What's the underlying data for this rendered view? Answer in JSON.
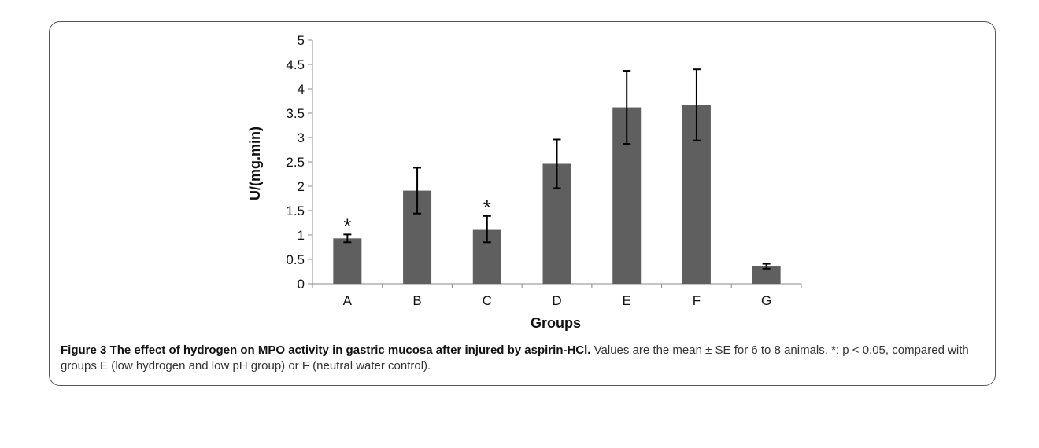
{
  "chart_data": {
    "type": "bar",
    "xlabel": "Groups",
    "ylabel": "U/(mg.min)",
    "ylim": [
      0,
      5
    ],
    "yticks": [
      "0",
      "0.5",
      "1",
      "1.5",
      "2",
      "2.5",
      "3",
      "3.5",
      "4",
      "4.5",
      "5"
    ],
    "categories": [
      "A",
      "B",
      "C",
      "D",
      "E",
      "F",
      "G"
    ],
    "values": [
      0.93,
      1.91,
      1.12,
      2.46,
      3.62,
      3.67,
      0.36
    ],
    "errors": [
      0.08,
      0.47,
      0.27,
      0.5,
      0.75,
      0.73,
      0.05
    ],
    "annotations": [
      "*",
      "",
      "*",
      "",
      "",
      "",
      ""
    ],
    "bar_color": "#5f5f5f",
    "grid": false,
    "legend": "none"
  },
  "caption": {
    "label": "Figure 3",
    "title": "The effect of hydrogen on MPO activity in gastric mucosa after injured by aspirin-HCl.",
    "text": " Values are the mean ± SE for 6 to 8 animals. *: p < 0.05, compared with groups E (low hydrogen and low pH group) or F (neutral water control)."
  }
}
